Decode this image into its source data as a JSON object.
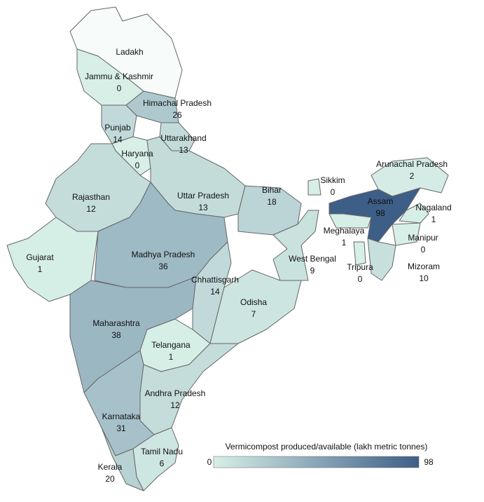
{
  "chart_data": {
    "type": "choropleth",
    "regions": [
      {
        "name": "Ladakh",
        "value": null
      },
      {
        "name": "Jammu & Kashmir",
        "value": 0
      },
      {
        "name": "Himachal Pradesh",
        "value": 26
      },
      {
        "name": "Punjab",
        "value": 14
      },
      {
        "name": "Uttarakhand",
        "value": 13
      },
      {
        "name": "Haryana",
        "value": 0
      },
      {
        "name": "Rajasthan",
        "value": 12
      },
      {
        "name": "Uttar Pradesh",
        "value": 13
      },
      {
        "name": "Bihar",
        "value": 18
      },
      {
        "name": "Sikkim",
        "value": 0
      },
      {
        "name": "Arunachal Pradesh",
        "value": 2
      },
      {
        "name": "Assam",
        "value": 98
      },
      {
        "name": "Nagaland",
        "value": 1
      },
      {
        "name": "Meghalaya",
        "value": 1
      },
      {
        "name": "Manipur",
        "value": 0
      },
      {
        "name": "Gujarat",
        "value": 1
      },
      {
        "name": "Madhya Pradesh",
        "value": 36
      },
      {
        "name": "West Bengal",
        "value": 9
      },
      {
        "name": "Tripura",
        "value": 0
      },
      {
        "name": "Mizoram",
        "value": 10
      },
      {
        "name": "Chhattisgarh",
        "value": 14
      },
      {
        "name": "Odisha",
        "value": 7
      },
      {
        "name": "Maharashtra",
        "value": 38
      },
      {
        "name": "Telangana",
        "value": 1
      },
      {
        "name": "Andhra Pradesh",
        "value": 12
      },
      {
        "name": "Karnataka",
        "value": 31
      },
      {
        "name": "Tamil Nadu",
        "value": 6
      },
      {
        "name": "Kerala",
        "value": 20
      }
    ],
    "legend": {
      "title": "Vermicompost produced/available (lakh metric tonnes)",
      "min": 0,
      "max": 98
    },
    "colors": [
      "#d7efe7",
      "#3d5e87"
    ]
  }
}
